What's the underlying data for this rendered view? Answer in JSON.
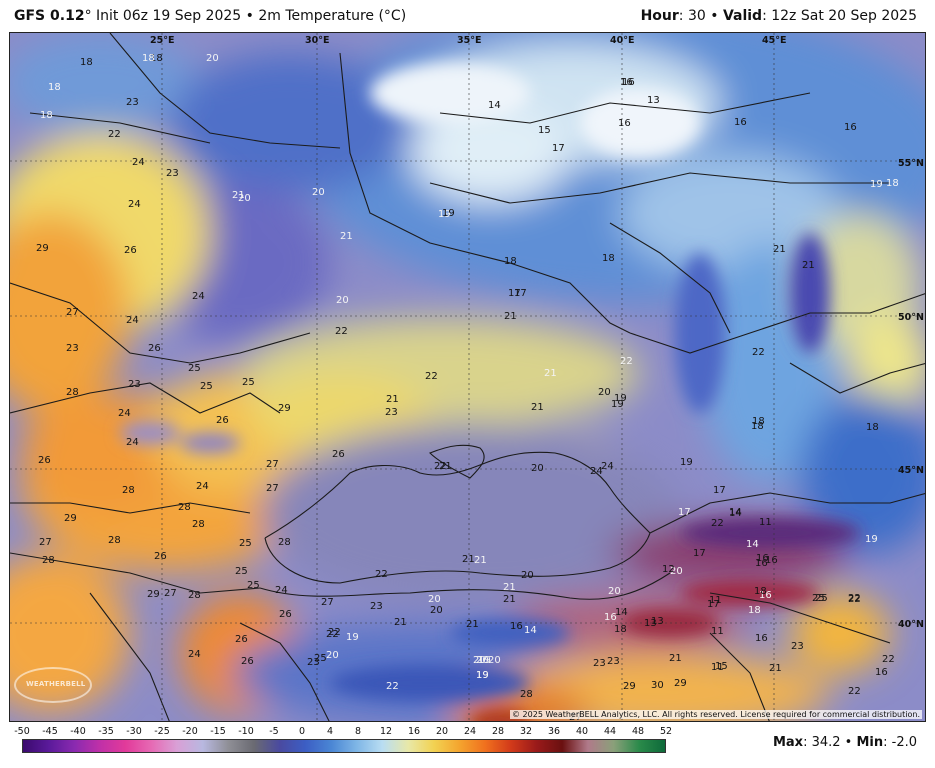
{
  "header": {
    "model": "GFS 0.12",
    "degree": "°",
    "init": " Init 06z 19 Sep 2025 • 2m Temperature (°C)",
    "hour_label": "Hour",
    "hour_value": ": 30 • ",
    "valid_label": "Valid",
    "valid_value": ": 12z Sat 20 Sep 2025"
  },
  "map": {
    "longitude_labels": [
      "25°E",
      "30°E",
      "35°E",
      "40°E",
      "45°E"
    ],
    "latitude_labels": [
      "55°N",
      "50°N",
      "45°N",
      "40°N"
    ],
    "copyright": "© 2025 WeatherBELL Analytics, LLC. All rights reserved. License required for commercial distribution.",
    "logo_text": "WEATHERBELL",
    "temperature_labels_dark": [
      "18",
      "18",
      "23",
      "22",
      "24",
      "23",
      "24",
      "29",
      "26",
      "27",
      "24",
      "23",
      "26",
      "24",
      "25",
      "25",
      "25",
      "23",
      "28",
      "24",
      "26",
      "24",
      "26",
      "29",
      "24",
      "28",
      "28",
      "28",
      "27",
      "27",
      "29",
      "28",
      "26",
      "27",
      "28",
      "27",
      "25",
      "25",
      "28",
      "29",
      "25",
      "24",
      "28",
      "26",
      "26",
      "27",
      "24",
      "25",
      "26",
      "23",
      "22",
      "22",
      "23",
      "21",
      "22",
      "21",
      "13",
      "16",
      "16",
      "22",
      "23",
      "25",
      "16",
      "14",
      "18",
      "20",
      "20",
      "16",
      "23",
      "21",
      "21",
      "21",
      "22",
      "21",
      "23",
      "22",
      "24",
      "26",
      "21",
      "21",
      "22",
      "24",
      "27",
      "29",
      "30",
      "29",
      "22",
      "16",
      "28",
      "27",
      "26",
      "28",
      "22",
      "17",
      "11",
      "15"
    ],
    "temperature_labels_light": [
      "18",
      "20",
      "18",
      "18",
      "21",
      "20",
      "20",
      "21",
      "19",
      "20",
      "19",
      "21",
      "22",
      "21",
      "20",
      "22",
      "20",
      "20",
      "19",
      "20",
      "19",
      "20",
      "19",
      "20",
      "21",
      "16",
      "14",
      "17",
      "19",
      "18",
      "19",
      "16",
      "14",
      "18",
      "20"
    ],
    "temperature_labels_black_map": [
      "14",
      "15",
      "17",
      "16",
      "13",
      "16",
      "16",
      "19",
      "18",
      "21",
      "17",
      "21",
      "18",
      "17",
      "21",
      "22",
      "18",
      "22",
      "20",
      "19",
      "19",
      "18",
      "19",
      "17",
      "14",
      "11",
      "17",
      "12",
      "11",
      "16",
      "18",
      "13",
      "11",
      "14",
      "18",
      "16",
      "21",
      "15",
      "25",
      "22",
      "20",
      "16",
      "23"
    ]
  },
  "legend": {
    "ticks": [
      "-50",
      "-45",
      "-40",
      "-35",
      "-30",
      "-25",
      "-20",
      "-15",
      "-10",
      "-5",
      "0",
      "4",
      "8",
      "12",
      "16",
      "20",
      "24",
      "28",
      "32",
      "36",
      "40",
      "44",
      "48",
      "52"
    ],
    "max_label": "Max",
    "max_value": ": 34.2 • ",
    "min_label": "Min",
    "min_value": ": -2.0"
  }
}
